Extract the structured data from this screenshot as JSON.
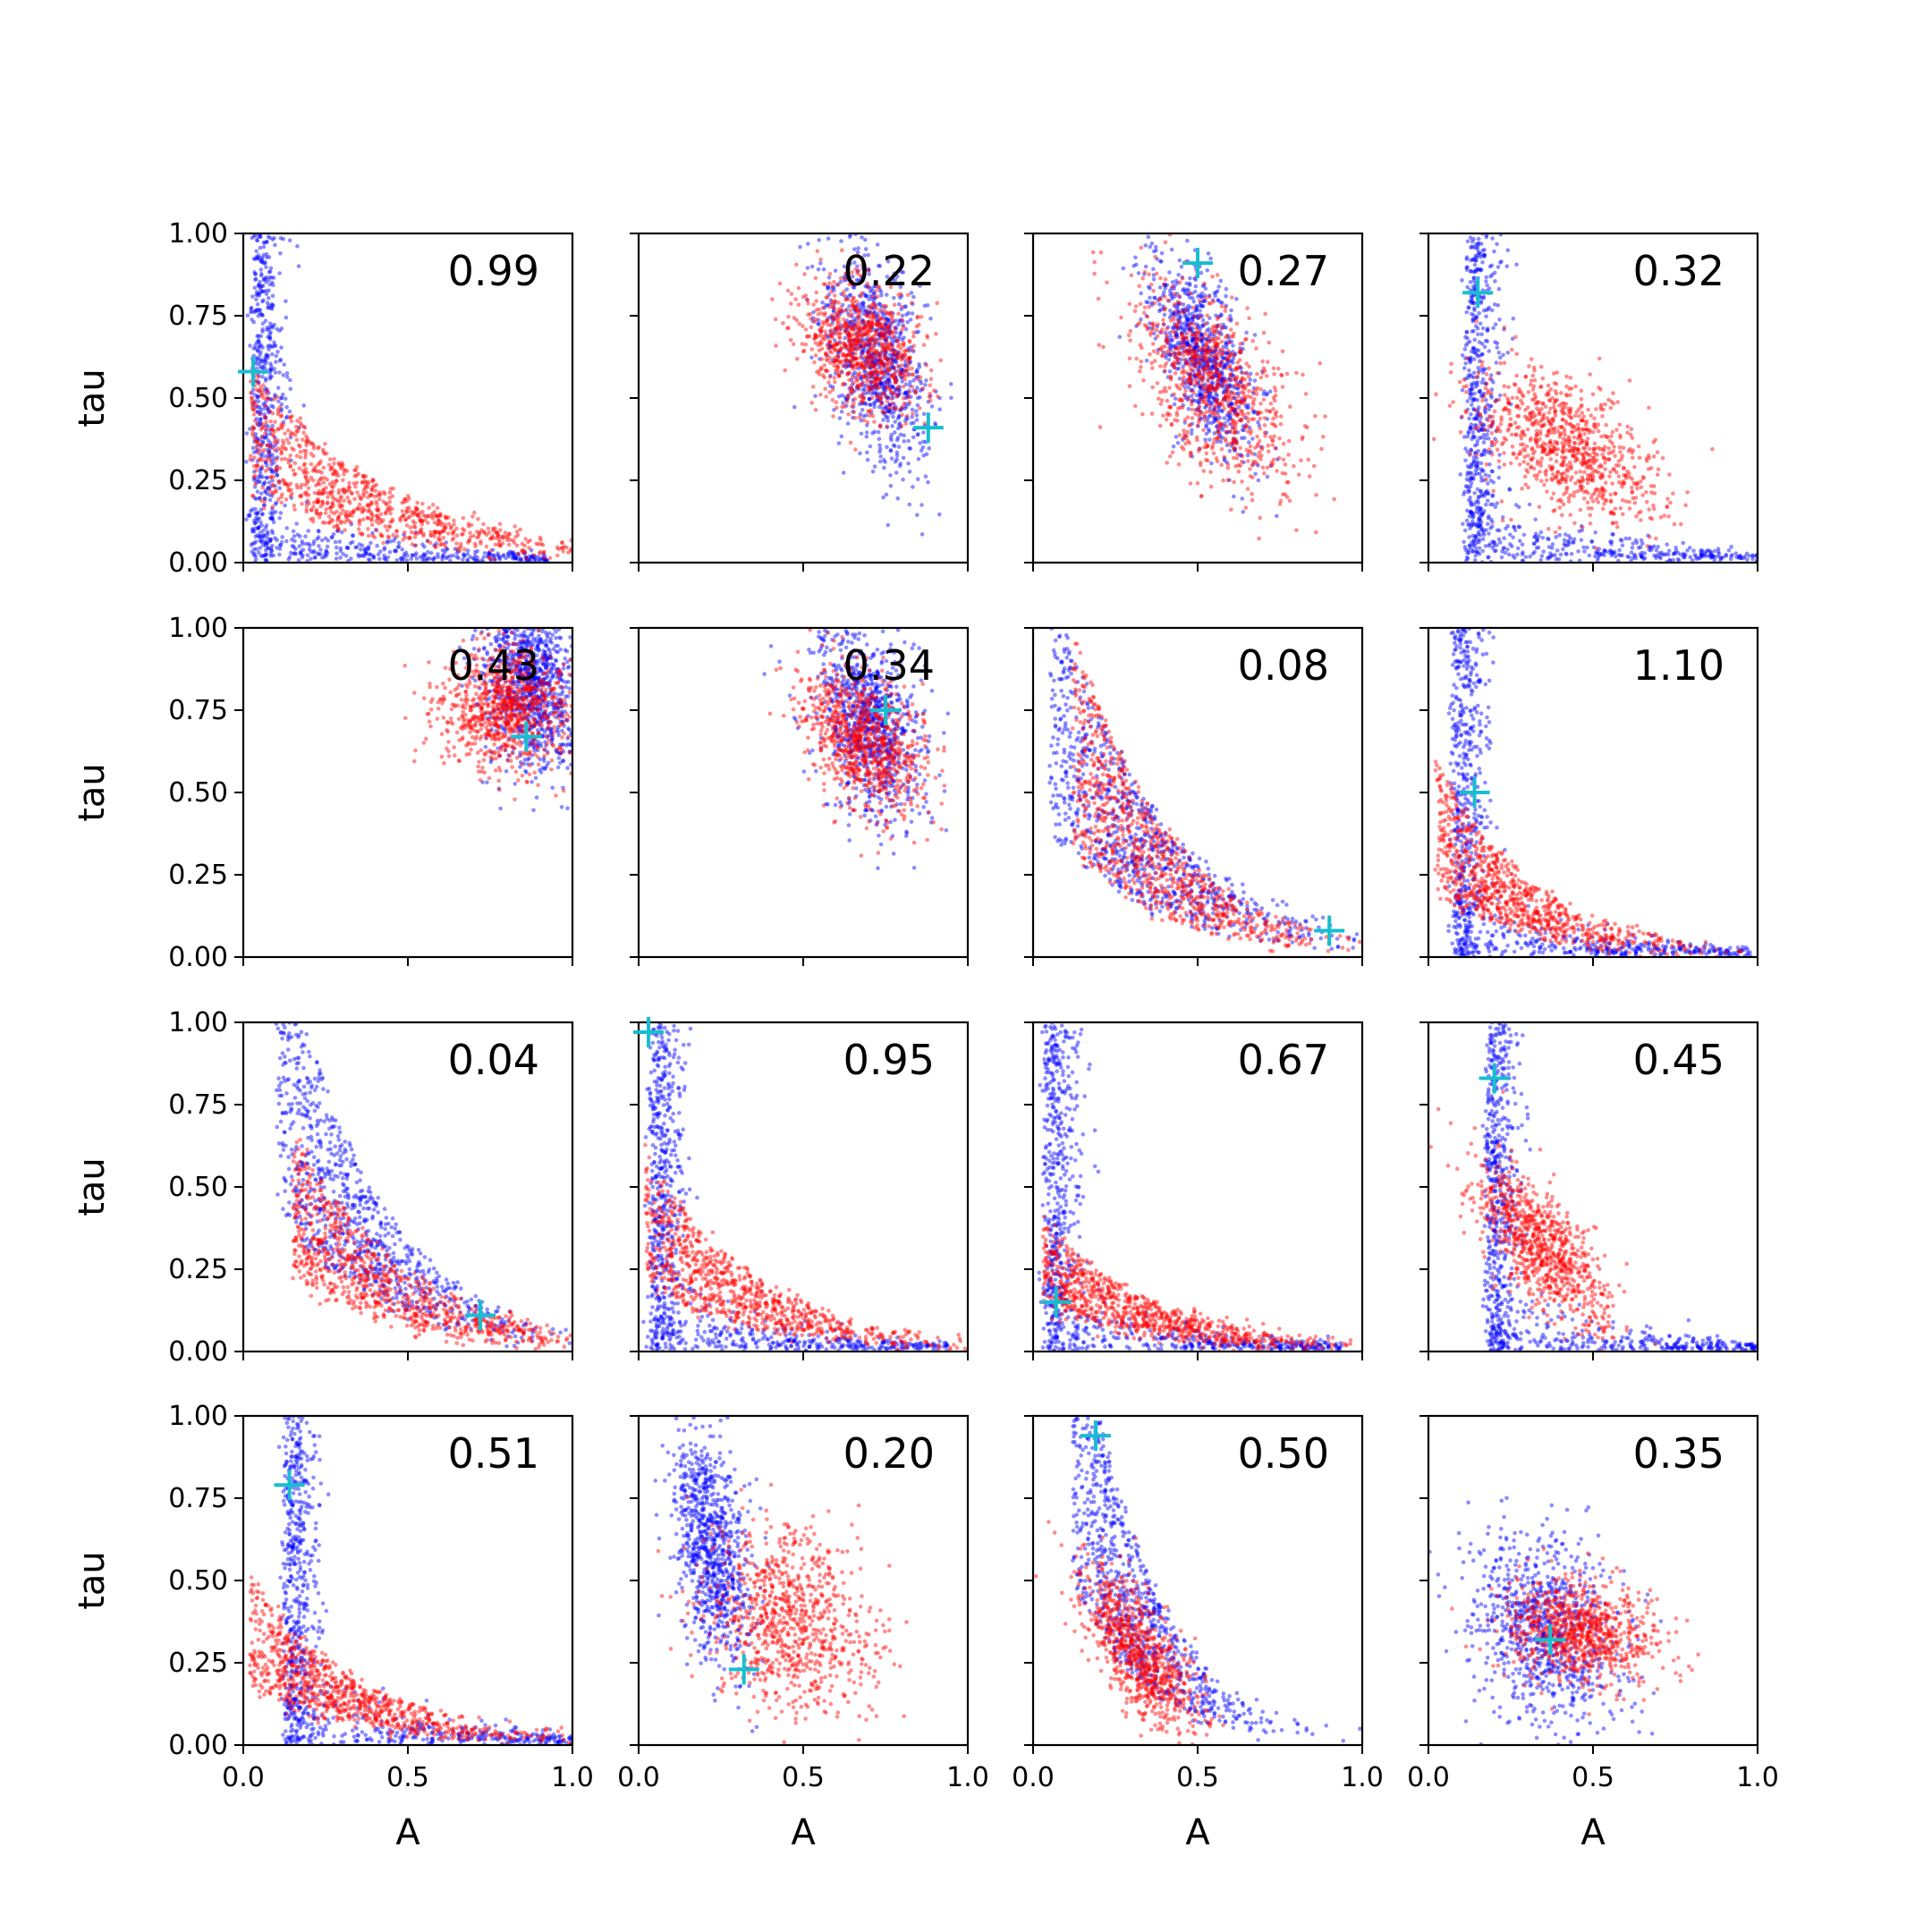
{
  "chart_data": {
    "type": "scatter",
    "title": "",
    "xlabel": "A",
    "ylabel": "tau",
    "xlim": [
      0,
      1
    ],
    "ylim": [
      0,
      1
    ],
    "x_ticks": [
      "0.0",
      "0.5",
      "1.0"
    ],
    "y_ticks": [
      "0.00",
      "0.25",
      "0.50",
      "0.75",
      "1.00"
    ],
    "grid": false,
    "legend": "none",
    "colors": {
      "blue": "#0000ff",
      "red": "#ff0000",
      "marker": "#17becf"
    },
    "panels": [
      {
        "label": "0.99",
        "marker": [
          0.03,
          0.58
        ],
        "blue": {
          "shape": "lshape",
          "vert_x": 0.03,
          "tail": 0.25
        },
        "red": {
          "shape": "decay",
          "a0": 0.02,
          "scale": 0.45,
          "tau0": 0.45
        }
      },
      {
        "label": "0.22",
        "marker": [
          0.88,
          0.41
        ],
        "blue": {
          "shape": "blob",
          "cx": 0.72,
          "cy": 0.62,
          "sx": 0.08,
          "sy": 0.16,
          "rho": -0.45
        },
        "red": {
          "shape": "blob",
          "cx": 0.68,
          "cy": 0.65,
          "sx": 0.09,
          "sy": 0.1,
          "rho": -0.3
        }
      },
      {
        "label": "0.27",
        "marker": [
          0.5,
          0.91
        ],
        "blue": {
          "shape": "blob",
          "cx": 0.52,
          "cy": 0.62,
          "sx": 0.08,
          "sy": 0.15,
          "rho": -0.6
        },
        "red": {
          "shape": "blob",
          "cx": 0.55,
          "cy": 0.53,
          "sx": 0.12,
          "sy": 0.16,
          "rho": -0.55
        }
      },
      {
        "label": "0.32",
        "marker": [
          0.15,
          0.82
        ],
        "blue": {
          "shape": "lshape",
          "vert_x": 0.12,
          "tail": 0.4
        },
        "red": {
          "shape": "blob",
          "cx": 0.42,
          "cy": 0.36,
          "sx": 0.14,
          "sy": 0.12,
          "rho": -0.55
        }
      },
      {
        "label": "0.43",
        "marker": [
          0.86,
          0.67
        ],
        "blue": {
          "shape": "blob",
          "cx": 0.87,
          "cy": 0.85,
          "sx": 0.07,
          "sy": 0.14,
          "rho": -0.2
        },
        "red": {
          "shape": "blob",
          "cx": 0.8,
          "cy": 0.76,
          "sx": 0.1,
          "sy": 0.09,
          "rho": 0.0
        }
      },
      {
        "label": "0.34",
        "marker": [
          0.75,
          0.75
        ],
        "blue": {
          "shape": "blob",
          "cx": 0.7,
          "cy": 0.72,
          "sx": 0.08,
          "sy": 0.15,
          "rho": -0.4
        },
        "red": {
          "shape": "blob",
          "cx": 0.68,
          "cy": 0.66,
          "sx": 0.09,
          "sy": 0.11,
          "rho": -0.4
        }
      },
      {
        "label": "0.08",
        "marker": [
          0.9,
          0.08
        ],
        "blue": {
          "shape": "decay",
          "a0": 0.05,
          "scale": 0.35,
          "tau0": 0.85
        },
        "red": {
          "shape": "decay",
          "a0": 0.12,
          "scale": 0.3,
          "tau0": 0.75
        }
      },
      {
        "label": "1.10",
        "marker": [
          0.14,
          0.5
        ],
        "blue": {
          "shape": "lshape",
          "vert_x": 0.08,
          "tail": 0.3
        },
        "red": {
          "shape": "decay",
          "a0": 0.02,
          "scale": 0.3,
          "tau0": 0.45
        }
      },
      {
        "label": "0.04",
        "marker": [
          0.72,
          0.11
        ],
        "blue": {
          "shape": "decay",
          "a0": 0.1,
          "scale": 0.3,
          "tau0": 1.0
        },
        "red": {
          "shape": "decay",
          "a0": 0.15,
          "scale": 0.35,
          "tau0": 0.5
        }
      },
      {
        "label": "0.95",
        "marker": [
          0.03,
          0.97
        ],
        "blue": {
          "shape": "lshape",
          "vert_x": 0.04,
          "tail": 0.3
        },
        "red": {
          "shape": "decay",
          "a0": 0.02,
          "scale": 0.35,
          "tau0": 0.45
        }
      },
      {
        "label": "0.67",
        "marker": [
          0.07,
          0.15
        ],
        "blue": {
          "shape": "lshape",
          "vert_x": 0.04,
          "tail": 0.3
        },
        "red": {
          "shape": "decay",
          "a0": 0.03,
          "scale": 0.35,
          "tau0": 0.3
        }
      },
      {
        "label": "0.45",
        "marker": [
          0.2,
          0.83
        ],
        "blue": {
          "shape": "lshape",
          "vert_x": 0.18,
          "tail": 0.2
        },
        "red": {
          "shape": "blob",
          "cx": 0.33,
          "cy": 0.33,
          "sx": 0.1,
          "sy": 0.12,
          "rho": -0.7
        }
      },
      {
        "label": "0.51",
        "marker": [
          0.14,
          0.79
        ],
        "blue": {
          "shape": "lshape",
          "vert_x": 0.13,
          "tail": 0.35
        },
        "red": {
          "shape": "decay",
          "a0": 0.02,
          "scale": 0.35,
          "tau0": 0.38
        }
      },
      {
        "label": "0.20",
        "marker": [
          0.32,
          0.23
        ],
        "blue": {
          "shape": "blob",
          "cx": 0.22,
          "cy": 0.6,
          "sx": 0.06,
          "sy": 0.18,
          "rho": -0.4
        },
        "red": {
          "shape": "blob",
          "cx": 0.46,
          "cy": 0.38,
          "sx": 0.13,
          "sy": 0.14,
          "rho": -0.2
        }
      },
      {
        "label": "0.50",
        "marker": [
          0.19,
          0.94
        ],
        "blue": {
          "shape": "decay",
          "a0": 0.12,
          "scale": 0.22,
          "tau0": 1.1
        },
        "red": {
          "shape": "blob",
          "cx": 0.32,
          "cy": 0.28,
          "sx": 0.09,
          "sy": 0.13,
          "rho": -0.7
        }
      },
      {
        "label": "0.35",
        "marker": [
          0.37,
          0.32
        ],
        "blue": {
          "shape": "blob",
          "cx": 0.35,
          "cy": 0.35,
          "sx": 0.12,
          "sy": 0.15,
          "rho": -0.3
        },
        "red": {
          "shape": "blob",
          "cx": 0.46,
          "cy": 0.34,
          "sx": 0.12,
          "sy": 0.08,
          "rho": -0.2
        }
      }
    ]
  }
}
